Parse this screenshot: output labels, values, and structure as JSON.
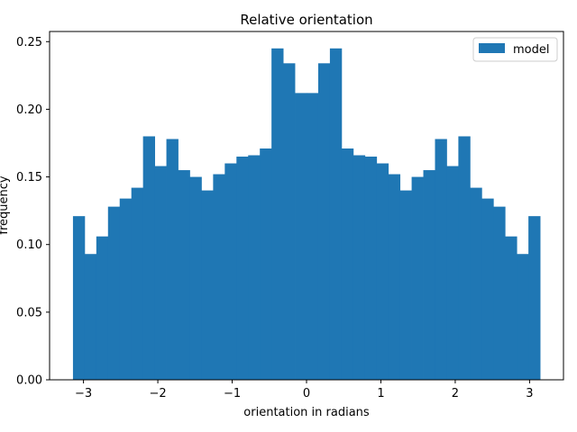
{
  "chart_data": {
    "type": "bar",
    "title": "Relative orientation",
    "xlabel": "orientation in radians",
    "ylabel": "frequency",
    "xlim": [
      -3.456,
      3.456
    ],
    "ylim": [
      0.0,
      0.2575
    ],
    "bin_range": [
      -3.14159,
      3.14159
    ],
    "x_ticks": [
      -3,
      -2,
      -1,
      0,
      1,
      2,
      3
    ],
    "x_tick_labels": [
      "−3",
      "−2",
      "−1",
      "0",
      "1",
      "2",
      "3"
    ],
    "y_ticks": [
      0.0,
      0.05,
      0.1,
      0.15,
      0.2,
      0.25
    ],
    "y_tick_labels": [
      "0.00",
      "0.05",
      "0.10",
      "0.15",
      "0.20",
      "0.25"
    ],
    "grid": false,
    "legend_position": "top-right",
    "series": [
      {
        "name": "model",
        "color": "#1f77b4",
        "values": [
          0.121,
          0.093,
          0.106,
          0.128,
          0.134,
          0.142,
          0.18,
          0.158,
          0.178,
          0.155,
          0.15,
          0.14,
          0.152,
          0.16,
          0.165,
          0.166,
          0.171,
          0.245,
          0.234,
          0.212,
          0.212,
          0.234,
          0.245,
          0.171,
          0.166,
          0.165,
          0.16,
          0.152,
          0.14,
          0.15,
          0.155,
          0.178,
          0.158,
          0.18,
          0.142,
          0.134,
          0.128,
          0.106,
          0.093,
          0.121
        ]
      }
    ]
  }
}
